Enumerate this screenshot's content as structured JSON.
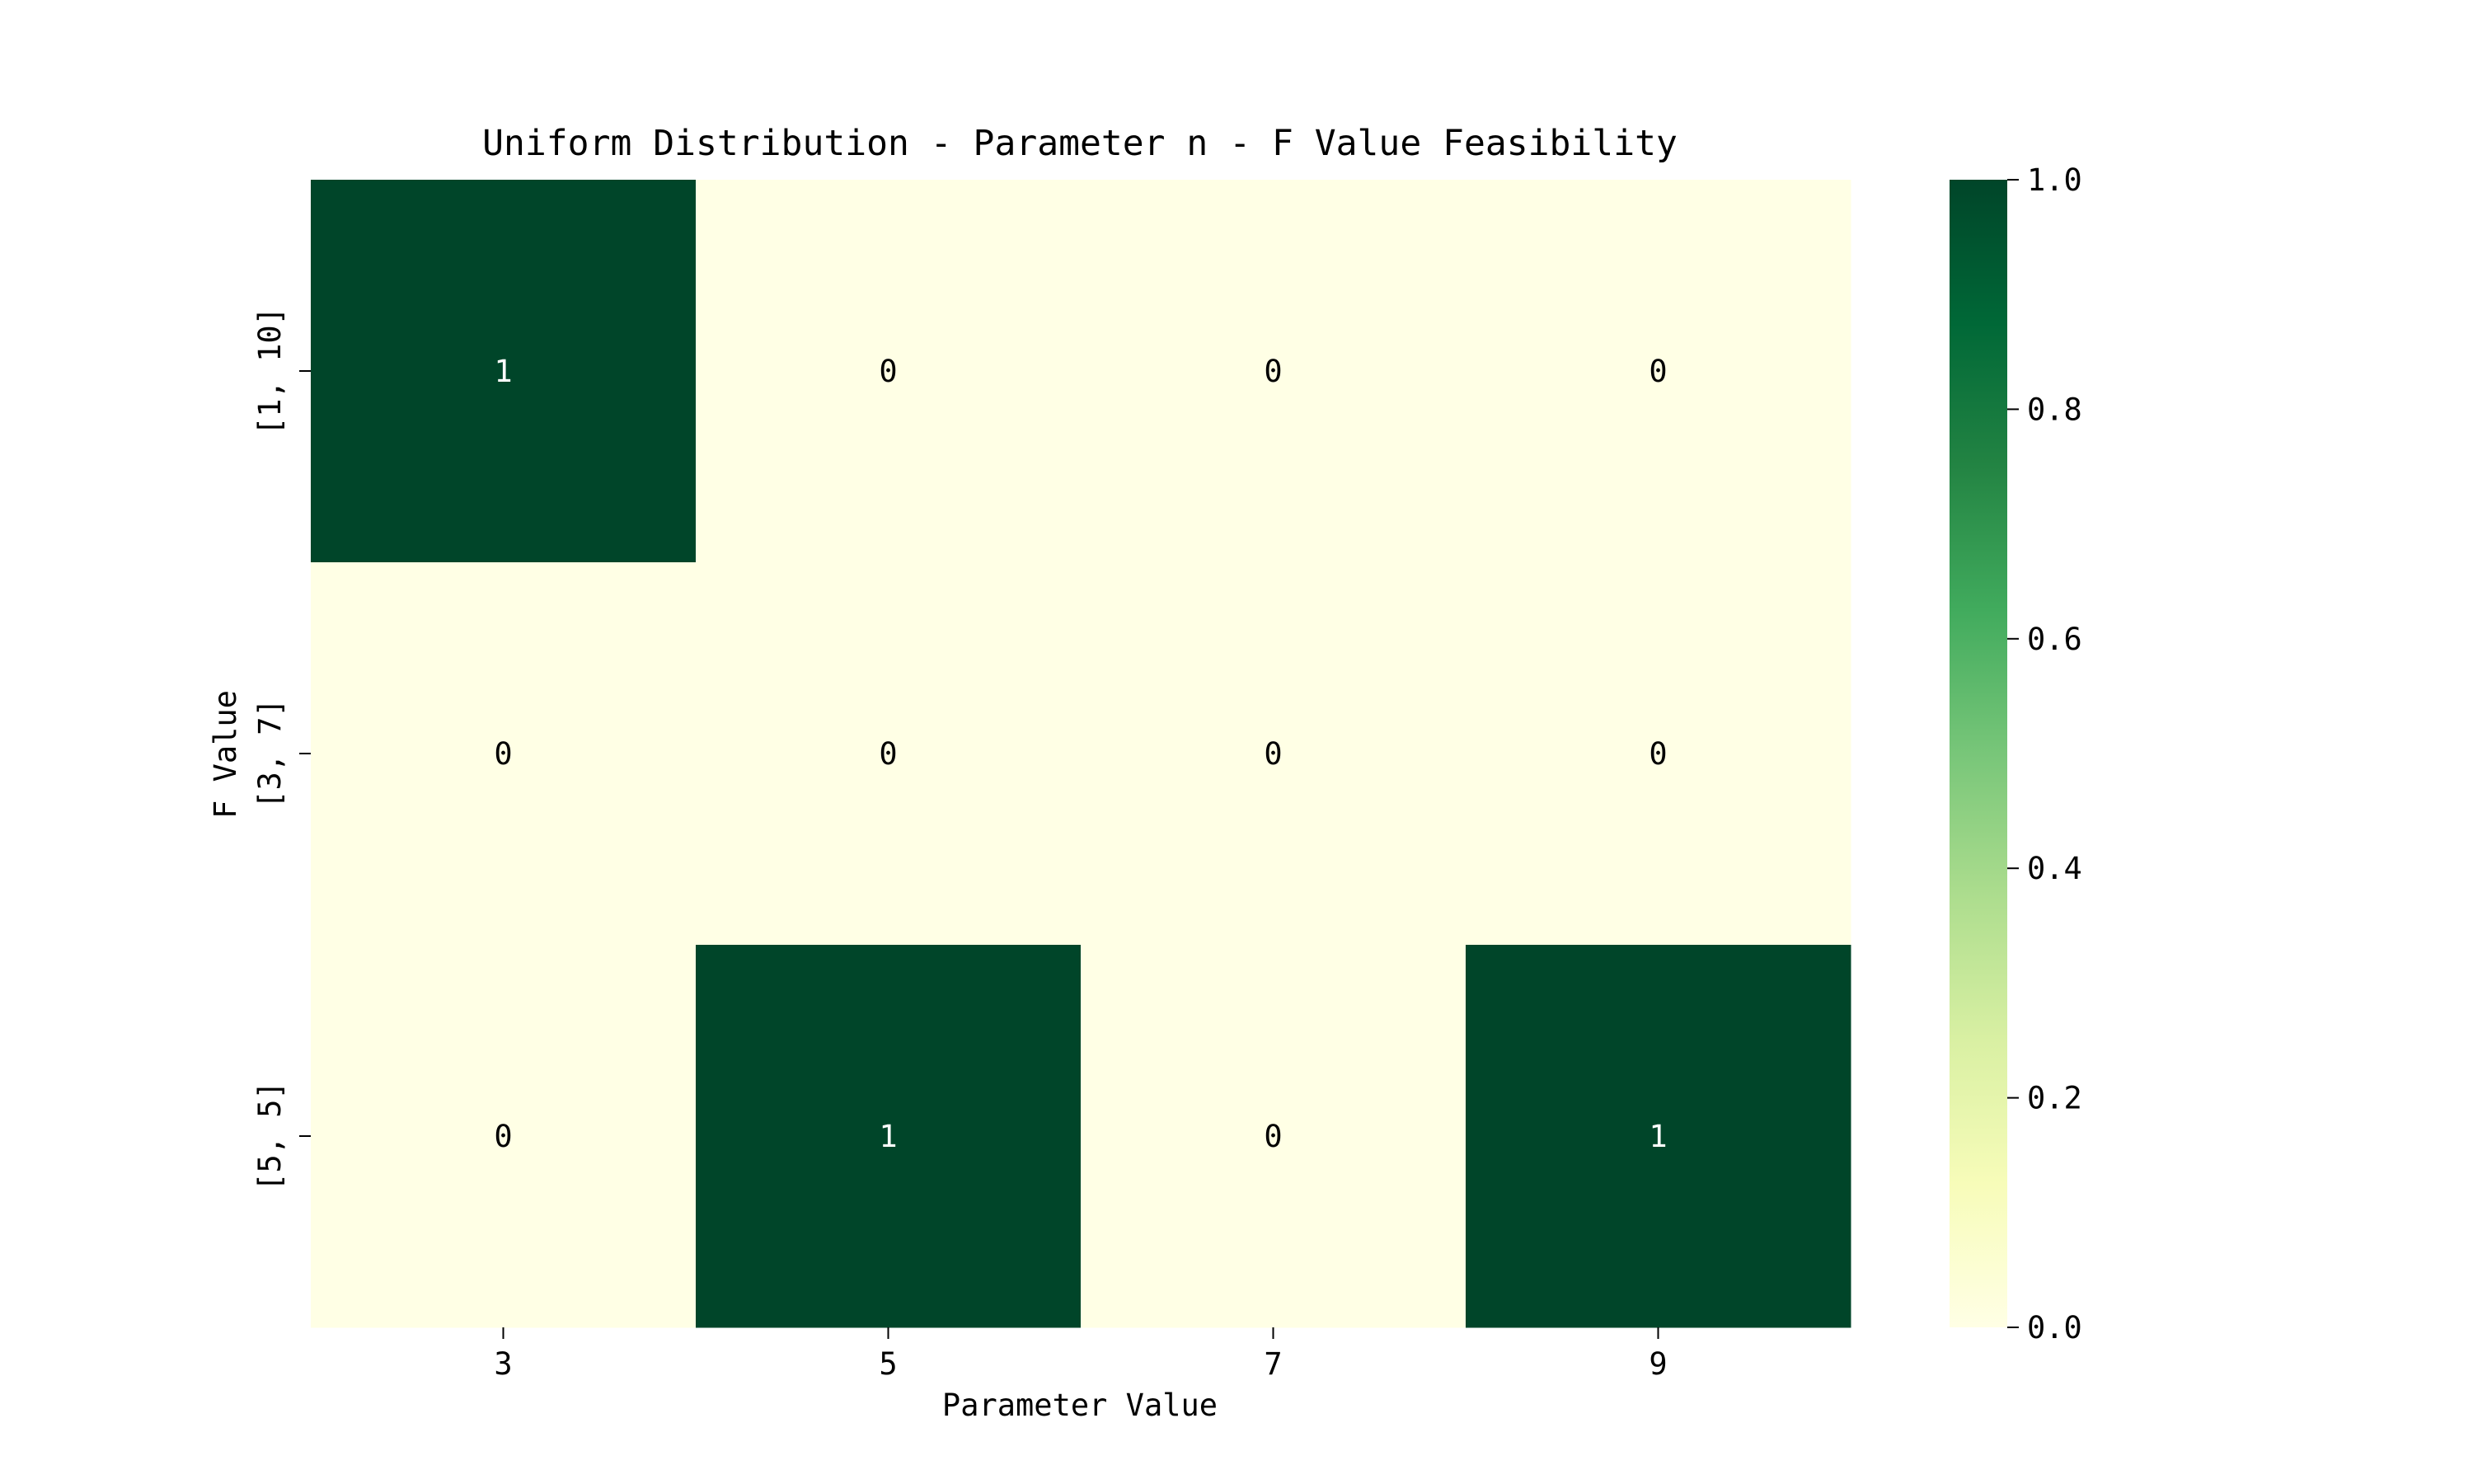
{
  "chart_data": {
    "type": "heatmap",
    "title": "Uniform Distribution - Parameter n - F Value Feasibility",
    "xlabel": "Parameter Value",
    "ylabel": "F Value",
    "x_categories": [
      "3",
      "5",
      "7",
      "9"
    ],
    "y_categories": [
      "[1, 10]",
      "[3, 7]",
      "[5, 5]"
    ],
    "values": [
      [
        1,
        0,
        0,
        0
      ],
      [
        0,
        0,
        0,
        0
      ],
      [
        0,
        1,
        0,
        1
      ]
    ],
    "cell_labels": [
      [
        "1",
        "0",
        "0",
        "0"
      ],
      [
        "0",
        "0",
        "0",
        "0"
      ],
      [
        "0",
        "1",
        "0",
        "1"
      ]
    ],
    "colormap": "YlGn",
    "colormap_stops": [
      "#ffffe5",
      "#f7fcb9",
      "#d9f0a3",
      "#addd8e",
      "#78c679",
      "#41ab5d",
      "#238443",
      "#006837",
      "#004529"
    ],
    "vmin": 0.0,
    "vmax": 1.0,
    "colorbar_ticks": [
      "0.0",
      "0.2",
      "0.4",
      "0.6",
      "0.8",
      "1.0"
    ],
    "colorbar_tick_values": [
      0.0,
      0.2,
      0.4,
      0.6,
      0.8,
      1.0
    ],
    "colors": {
      "low": "#ffffe5",
      "high": "#004529",
      "annotation_on_low": "#000000",
      "annotation_on_high": "#ffffff"
    }
  }
}
